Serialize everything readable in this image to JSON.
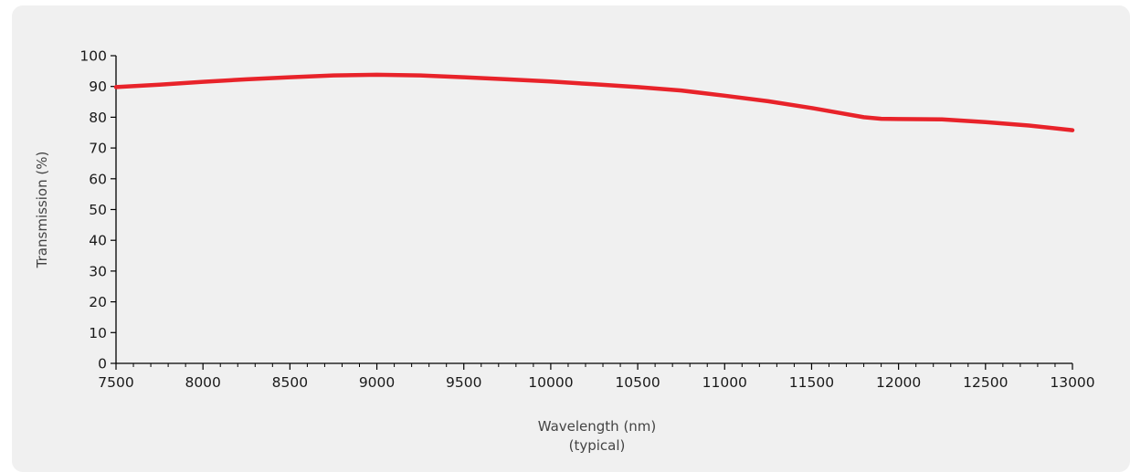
{
  "chart_data": {
    "type": "line",
    "title": "",
    "xlabel": "Wavelength (nm)",
    "xlabel_sub": "(typical)",
    "ylabel": "Transmission (%)",
    "xlim": [
      7500,
      13000
    ],
    "ylim": [
      0,
      100
    ],
    "x_ticks": [
      7500,
      8000,
      8500,
      9000,
      9500,
      10000,
      10500,
      11000,
      11500,
      12000,
      12500,
      13000
    ],
    "x_tick_labels": [
      "7500",
      "8000",
      "8500",
      "9000",
      "9500",
      "10000",
      "10500",
      "11000",
      "11500",
      "12000",
      "12500",
      "13000"
    ],
    "y_ticks": [
      0,
      10,
      20,
      30,
      40,
      50,
      60,
      70,
      80,
      90,
      100
    ],
    "y_tick_labels": [
      "0",
      "10",
      "20",
      "30",
      "40",
      "50",
      "60",
      "70",
      "80",
      "90",
      "100"
    ],
    "grid": false,
    "legend": "none",
    "series": [
      {
        "color": "#e8232a",
        "x": [
          7500,
          7750,
          8000,
          8250,
          8500,
          8750,
          9000,
          9250,
          9500,
          9750,
          10000,
          10250,
          10500,
          10750,
          11000,
          11250,
          11500,
          11650,
          11800,
          11900,
          12000,
          12250,
          12500,
          12750,
          13000
        ],
        "y": [
          89.8,
          90.6,
          91.5,
          92.3,
          93.0,
          93.6,
          93.8,
          93.6,
          93.0,
          92.3,
          91.6,
          90.7,
          89.8,
          88.7,
          87.0,
          85.2,
          83.0,
          81.5,
          80.0,
          79.5,
          79.4,
          79.3,
          78.4,
          77.3,
          75.8
        ]
      }
    ]
  }
}
